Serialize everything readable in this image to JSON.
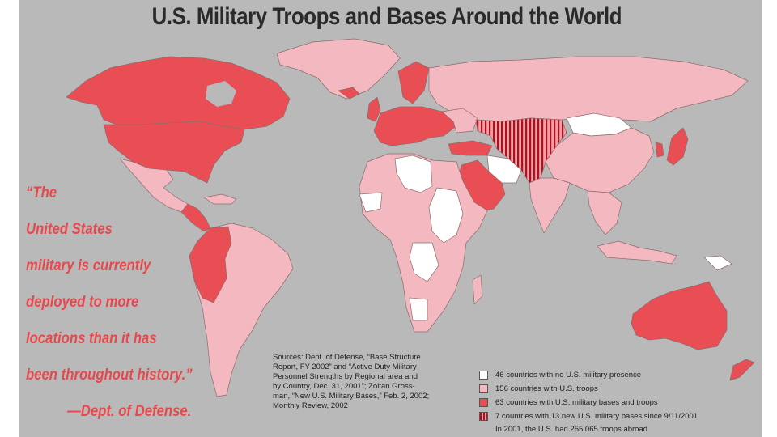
{
  "title": "U.S. Military Troops and Bases Around the World",
  "quote": {
    "lines": [
      "“The",
      "United States",
      "military is currently",
      "deployed to more",
      "locations than it has",
      "been throughout history.”"
    ],
    "attribution": "—Dept. of Defense."
  },
  "sources": {
    "lines": [
      "Sources: Dept. of Defense, “Base Structure",
      "Report, FY 2002” and “Active Duty Military",
      "Personnel Strengths by Regional area and",
      "by Country, Dec. 31, 2001”; Zoltan Gross-",
      "man, “New U.S. Military Bases,” Feb. 2, 2002;",
      "Monthly Review, 2002"
    ]
  },
  "legend": {
    "items": [
      {
        "label": "46 countries with no U.S. military presence",
        "swatch": "none"
      },
      {
        "label": "156 countries with U.S. troops",
        "swatch": "troops"
      },
      {
        "label": "63 countries with U.S. military bases and troops",
        "swatch": "bases"
      },
      {
        "label": "7 countries with 13 new U.S. military bases since 9/11/2001",
        "swatch": "new-bases"
      }
    ],
    "footnote": "In 2001, the U.S. had 255,065 troops abroad"
  },
  "colors": {
    "ocean": "#b9b9b9",
    "none": "#ffffff",
    "troops": "#f4b9c0",
    "bases": "#ea4e55",
    "new_bases_stripe": "#b0101c",
    "border": "#8a6c6c",
    "quote_text": "#e8484c",
    "title_text": "#2a2a2a"
  }
}
